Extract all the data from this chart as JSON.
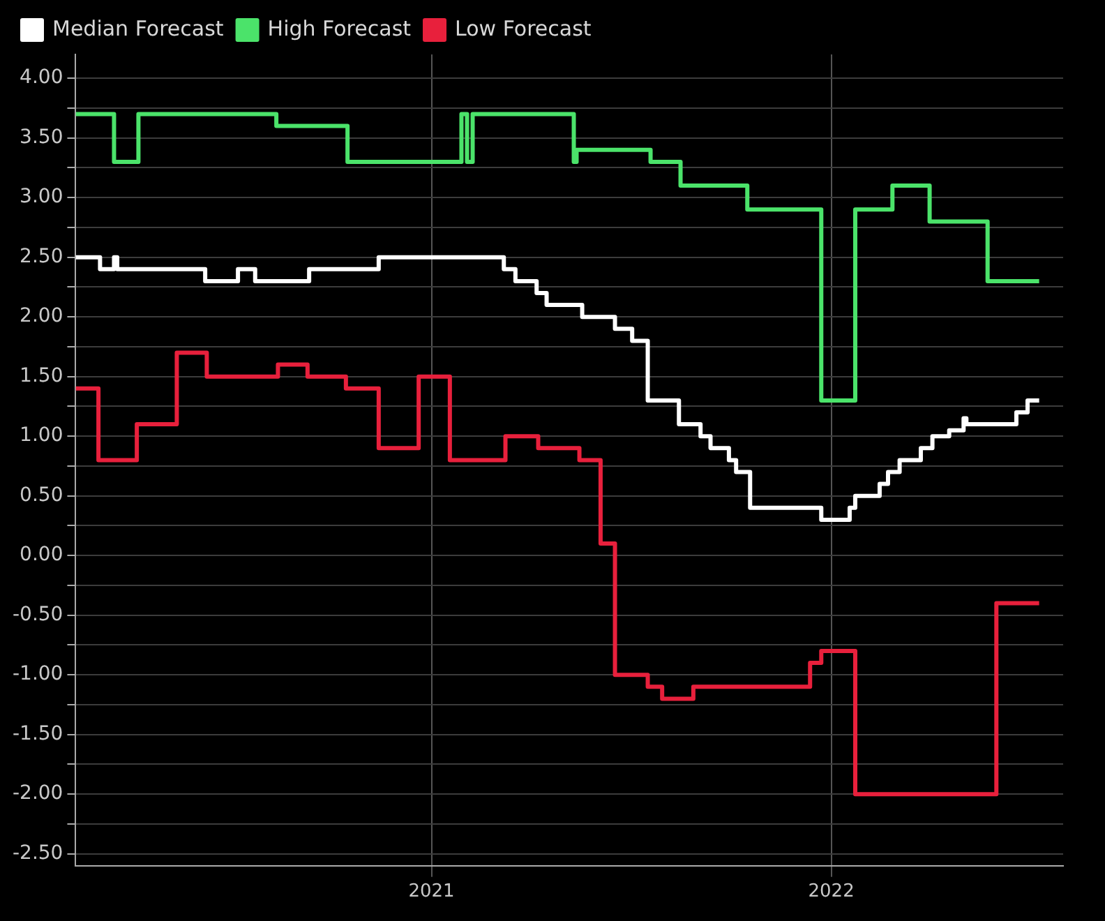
{
  "chart_data": {
    "type": "step",
    "legend": "top left",
    "grid": true,
    "xlim": [
      2020.11,
      2022.58
    ],
    "xticks": [
      2021,
      2022
    ],
    "ylim": [
      -2.6,
      4.2
    ],
    "yticks": [
      {
        "value": -2.5,
        "label": "-2.50"
      },
      {
        "value": -2.25,
        "label": null
      },
      {
        "value": -2,
        "label": "-2.00"
      },
      {
        "value": -1.75,
        "label": null
      },
      {
        "value": -1.5,
        "label": "-1.50"
      },
      {
        "value": -1.25,
        "label": null
      },
      {
        "value": -1,
        "label": "-1.00"
      },
      {
        "value": -0.75,
        "label": null
      },
      {
        "value": -0.5,
        "label": "-0.50"
      },
      {
        "value": -0.25,
        "label": null
      },
      {
        "value": 0,
        "label": "0.00"
      },
      {
        "value": 0.25,
        "label": null
      },
      {
        "value": 0.5,
        "label": "0.50"
      },
      {
        "value": 0.75,
        "label": null
      },
      {
        "value": 1,
        "label": "1.00"
      },
      {
        "value": 1.25,
        "label": null
      },
      {
        "value": 1.5,
        "label": "1.50"
      },
      {
        "value": 1.75,
        "label": null
      },
      {
        "value": 2,
        "label": "2.00"
      },
      {
        "value": 2.25,
        "label": null
      },
      {
        "value": 2.5,
        "label": "2.50"
      },
      {
        "value": 2.75,
        "label": null
      },
      {
        "value": 3,
        "label": "3.00"
      },
      {
        "value": 3.25,
        "label": null
      },
      {
        "value": 3.5,
        "label": "3.50"
      },
      {
        "value": 3.75,
        "label": null
      },
      {
        "value": 4,
        "label": "4.00"
      }
    ],
    "series": [
      {
        "name": "Median Forecast",
        "color": "#ffffff",
        "x": [
          2020.11,
          2020.171,
          2020.206,
          2020.214,
          2020.434,
          2020.516,
          2020.559,
          2020.694,
          2020.868,
          2021.181,
          2021.21,
          2021.263,
          2021.288,
          2021.377,
          2021.459,
          2021.502,
          2021.541,
          2021.619,
          2021.673,
          2021.698,
          2021.744,
          2021.762,
          2021.797,
          2021.975,
          2022.046,
          2022.06,
          2022.121,
          2022.142,
          2022.171,
          2022.224,
          2022.253,
          2022.295,
          2022.331,
          2022.338,
          2022.463,
          2022.491,
          2022.52
        ],
        "values": [
          2.5,
          2.4,
          2.5,
          2.4,
          2.3,
          2.4,
          2.3,
          2.4,
          2.5,
          2.4,
          2.3,
          2.2,
          2.1,
          2.0,
          1.9,
          1.8,
          1.3,
          1.1,
          1.0,
          0.9,
          0.8,
          0.7,
          0.4,
          0.3,
          0.4,
          0.5,
          0.6,
          0.7,
          0.8,
          0.9,
          1.0,
          1.05,
          1.15,
          1.1,
          1.2,
          1.3,
          1.3
        ]
      },
      {
        "name": "High Forecast",
        "color": "#4be36a",
        "x": [
          2020.11,
          2020.206,
          2020.267,
          2020.612,
          2020.79,
          2021.075,
          2021.089,
          2021.103,
          2021.356,
          2021.363,
          2021.548,
          2021.623,
          2021.79,
          2021.975,
          2022.06,
          2022.153,
          2022.246,
          2022.391,
          2022.52
        ],
        "values": [
          3.7,
          3.3,
          3.7,
          3.6,
          3.3,
          3.7,
          3.3,
          3.7,
          3.3,
          3.4,
          3.3,
          3.1,
          2.9,
          1.3,
          2.9,
          3.1,
          2.8,
          2.3,
          2.3
        ]
      },
      {
        "name": "Low Forecast",
        "color": "#e8203c",
        "x": [
          2020.11,
          2020.167,
          2020.263,
          2020.363,
          2020.438,
          2020.616,
          2020.69,
          2020.786,
          2020.868,
          2020.968,
          2021.046,
          2021.185,
          2021.267,
          2021.37,
          2021.423,
          2021.459,
          2021.541,
          2021.577,
          2021.655,
          2021.947,
          2021.975,
          2022.06,
          2022.413,
          2022.52
        ],
        "values": [
          1.4,
          0.8,
          1.1,
          1.7,
          1.5,
          1.6,
          1.5,
          1.4,
          0.9,
          1.5,
          0.8,
          1.0,
          0.9,
          0.8,
          0.1,
          -1.0,
          -1.1,
          -1.2,
          -1.1,
          -0.9,
          -0.8,
          -2.0,
          -0.4,
          -0.4
        ]
      }
    ]
  }
}
